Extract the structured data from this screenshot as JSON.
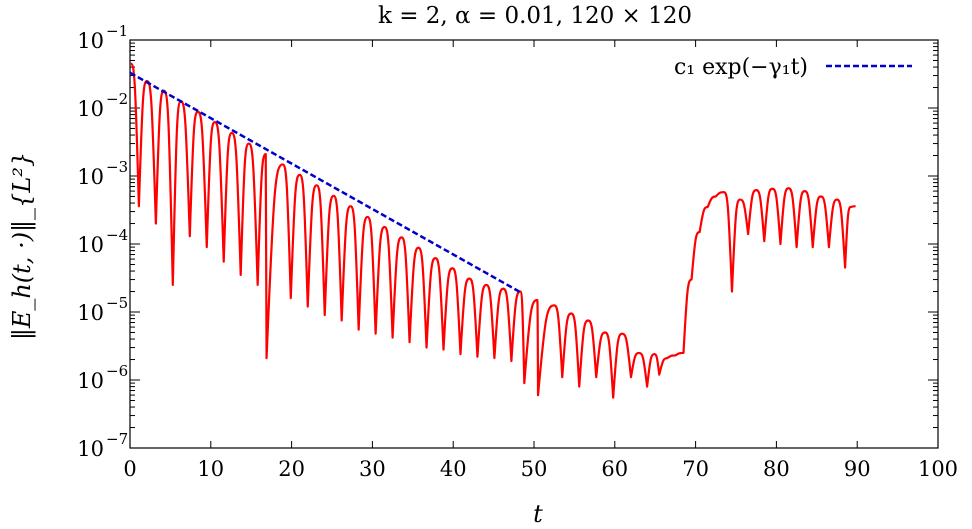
{
  "chart_data": {
    "type": "line",
    "title": "k = 2, α = 0.01, 120 × 120",
    "xlabel": "t",
    "ylabel": "‖E_h(t, ·)‖_{L²}",
    "xlim": [
      0,
      100
    ],
    "ylim": [
      1e-07,
      0.1
    ],
    "yscale": "log",
    "grid": false,
    "legend_position": "top-right",
    "x_ticks": [
      "0",
      "10",
      "20",
      "30",
      "40",
      "50",
      "60",
      "70",
      "80",
      "90",
      "100"
    ],
    "y_ticks": [
      {
        "base": "10",
        "exp": "−1",
        "value": 0.1
      },
      {
        "base": "10",
        "exp": "−2",
        "value": 0.01
      },
      {
        "base": "10",
        "exp": "−3",
        "value": 0.001
      },
      {
        "base": "10",
        "exp": "−4",
        "value": 0.0001
      },
      {
        "base": "10",
        "exp": "−5",
        "value": 1e-05
      },
      {
        "base": "10",
        "exp": "−6",
        "value": 1e-06
      },
      {
        "base": "10",
        "exp": "−7",
        "value": 1e-07
      }
    ],
    "series": [
      {
        "color": "#ff0000",
        "style": "solid",
        "peaks": [
          [
            0.1,
            0.045
          ],
          [
            2.1,
            0.025
          ],
          [
            4.2,
            0.018
          ],
          [
            6.3,
            0.0125
          ],
          [
            8.4,
            0.0088
          ],
          [
            10.5,
            0.0062
          ],
          [
            12.6,
            0.0043
          ],
          [
            14.7,
            0.003
          ],
          [
            16.8,
            0.0021
          ],
          [
            18.9,
            0.00148
          ],
          [
            21.0,
            0.00104
          ],
          [
            23.1,
            0.00073
          ],
          [
            25.2,
            0.00051
          ],
          [
            27.3,
            0.00036
          ],
          [
            29.4,
            0.00025
          ],
          [
            31.5,
            0.000178
          ],
          [
            33.6,
            0.000125
          ],
          [
            35.7,
            8.8e-05
          ],
          [
            37.8,
            6.2e-05
          ],
          [
            39.9,
            4.4e-05
          ],
          [
            42.0,
            3.1e-05
          ],
          [
            44.1,
            2.5e-05
          ],
          [
            46.2,
            2.2e-05
          ],
          [
            48.3,
            2e-05
          ],
          [
            50.4,
            1.5e-05
          ],
          [
            52.5,
            1.25e-05
          ],
          [
            54.6,
            9.5e-06
          ],
          [
            56.7,
            7.5e-06
          ],
          [
            58.8,
            5e-06
          ],
          [
            60.9,
            4.8e-06
          ],
          [
            63.0,
            2.5e-06
          ],
          [
            64.9,
            2.4e-06
          ]
        ],
        "troughs": [
          [
            1.1,
            0.00036
          ],
          [
            3.2,
            0.0002
          ],
          [
            5.3,
            2.5e-05
          ],
          [
            7.4,
            0.00013
          ],
          [
            9.5,
            9e-05
          ],
          [
            11.6,
            5.5e-05
          ],
          [
            13.7,
            3.5e-05
          ],
          [
            15.8,
            2.5e-05
          ],
          [
            16.9,
            2.1e-06
          ],
          [
            19.9,
            1.6e-05
          ],
          [
            22.0,
            1.2e-05
          ],
          [
            24.1,
            9e-06
          ],
          [
            26.2,
            7.5e-06
          ],
          [
            28.3,
            5.5e-06
          ],
          [
            30.4,
            4.8e-06
          ],
          [
            32.5,
            4.2e-06
          ],
          [
            34.6,
            3.6e-06
          ],
          [
            36.7,
            3e-06
          ],
          [
            38.8,
            2.8e-06
          ],
          [
            40.9,
            2.4e-06
          ],
          [
            43.0,
            2.2e-06
          ],
          [
            45.1,
            2.1e-06
          ],
          [
            47.2,
            1.9e-06
          ],
          [
            48.8,
            9e-07
          ],
          [
            50.5,
            6e-07
          ],
          [
            53.5,
            1.1e-06
          ],
          [
            55.6,
            8e-07
          ],
          [
            57.7,
            1.1e-06
          ],
          [
            59.8,
            5.5e-07
          ],
          [
            62.0,
            1.1e-06
          ],
          [
            64.0,
            8e-07
          ]
        ],
        "tail": [
          [
            65.5,
            1.2e-06
          ],
          [
            66.5,
            2.1e-06
          ],
          [
            67.5,
            2.3e-06
          ],
          [
            68.5,
            2.5e-06
          ],
          [
            69.5,
            3e-05
          ],
          [
            70.5,
            0.00015
          ],
          [
            71.5,
            0.00035
          ],
          [
            72.5,
            0.0005
          ],
          [
            73.5,
            0.00058
          ],
          [
            74.5,
            2e-05
          ],
          [
            75.5,
            0.00045
          ],
          [
            76.5,
            0.00014
          ],
          [
            77.5,
            0.00062
          ],
          [
            78.5,
            0.00011
          ],
          [
            79.5,
            0.00065
          ],
          [
            80.5,
            0.0001
          ],
          [
            81.5,
            0.00066
          ],
          [
            82.5,
            9e-05
          ],
          [
            83.5,
            0.0006
          ],
          [
            84.5,
            9e-05
          ],
          [
            85.5,
            0.0005
          ],
          [
            86.5,
            9e-05
          ],
          [
            87.5,
            0.00045
          ],
          [
            88.5,
            4.5e-05
          ],
          [
            89.2,
            0.00035
          ],
          [
            89.8,
            0.00036
          ]
        ]
      },
      {
        "name": "c₁ exp(−γ₁t)",
        "color": "#0000cc",
        "style": "dashed",
        "x": [
          0,
          48.5
        ],
        "y": [
          0.033,
          1.9e-05
        ]
      }
    ]
  }
}
